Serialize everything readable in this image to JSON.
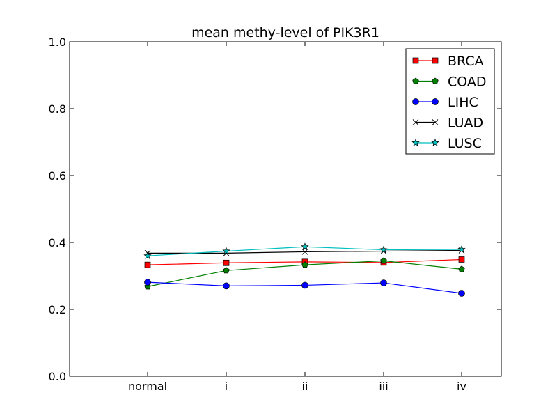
{
  "chart_data": {
    "type": "line",
    "title": "mean methy-level of PIK3R1",
    "xlabel": "",
    "ylabel": "",
    "categories": [
      "normal",
      "i",
      "ii",
      "iii",
      "iv"
    ],
    "ylim": [
      0.0,
      1.0
    ],
    "yticks": [
      0.0,
      0.2,
      0.4,
      0.6,
      0.8,
      1.0
    ],
    "ytick_labels": [
      "0.0",
      "0.2",
      "0.4",
      "0.6",
      "0.8",
      "1.0"
    ],
    "grid": false,
    "legend_position": "top-right",
    "series": [
      {
        "name": "BRCA",
        "color": "#ff0000",
        "marker": "square",
        "values": [
          0.333,
          0.339,
          0.342,
          0.34,
          0.349
        ]
      },
      {
        "name": "COAD",
        "color": "#008000",
        "marker": "pentagon",
        "values": [
          0.268,
          0.316,
          0.333,
          0.345,
          0.32
        ]
      },
      {
        "name": "LIHC",
        "color": "#0000ff",
        "marker": "circle",
        "values": [
          0.281,
          0.27,
          0.272,
          0.279,
          0.248
        ]
      },
      {
        "name": "LUAD",
        "color": "#000000",
        "marker": "x",
        "values": [
          0.368,
          0.368,
          0.372,
          0.374,
          0.376
        ]
      },
      {
        "name": "LUSC",
        "color": "#00bfbf",
        "marker": "star",
        "values": [
          0.36,
          0.374,
          0.387,
          0.378,
          0.379
        ]
      }
    ]
  }
}
